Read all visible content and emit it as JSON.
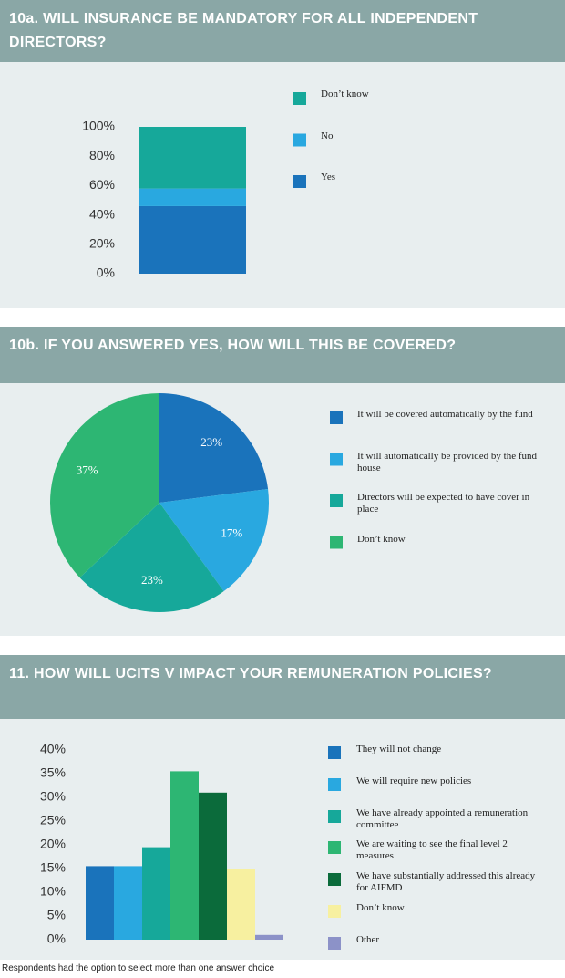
{
  "chart_data": [
    {
      "type": "stacked_bar",
      "title": "10a. WILL INSURANCE BE MANDATORY FOR ALL INDEPENDENT DIRECTORS?",
      "series": [
        {
          "name": "Yes",
          "color": "#1a73bb",
          "values": [
            46
          ]
        },
        {
          "name": "No",
          "color": "#29a8e0",
          "values": [
            12
          ]
        },
        {
          "name": "Don’t know",
          "color": "#16a89a",
          "values": [
            42
          ]
        }
      ],
      "ylim": [
        0,
        100
      ],
      "yticks": [
        {
          "value": 0,
          "label": "0%"
        },
        {
          "value": 20,
          "label": "20%"
        },
        {
          "value": 40,
          "label": "40%"
        },
        {
          "value": 60,
          "label": "60%"
        },
        {
          "value": 80,
          "label": "80%"
        },
        {
          "value": 100,
          "label": "100%"
        }
      ]
    },
    {
      "type": "pie",
      "title": "10b. IF YOU ANSWERED YES, HOW WILL THIS BE COVERED?",
      "categories": [
        "It will be covered automatically by the fund",
        "It will automatically be provided by the fund house",
        "Directors will be expected to have cover in place",
        "Don’t know"
      ],
      "values": [
        23,
        17,
        23,
        37
      ],
      "value_labels": [
        "23%",
        "17%",
        "23%",
        "37%"
      ],
      "colors": [
        "#1a73bb",
        "#29a8e0",
        "#16a89a",
        "#2db673"
      ]
    },
    {
      "type": "bar",
      "title": "11. HOW WILL UCITS V IMPACT YOUR REMUNERATION POLICIES?",
      "categories": [
        "They will not change",
        "We will require new policies",
        "We have already appointed a remuneration committee",
        "We are waiting to see the final level 2 measures",
        "We have substantially addressed this already for AIFMD",
        "Don’t know",
        "Other"
      ],
      "values": [
        15.5,
        15.5,
        19.5,
        35.5,
        31,
        15,
        1
      ],
      "colors": [
        "#1a73bb",
        "#29a8e0",
        "#16a89a",
        "#2db673",
        "#0b6b3b",
        "#f7f0a0",
        "#8c92c8"
      ],
      "ylim": [
        0,
        40
      ],
      "yticks": [
        {
          "value": 0,
          "label": "0%"
        },
        {
          "value": 5,
          "label": "5%"
        },
        {
          "value": 10,
          "label": "10%"
        },
        {
          "value": 15,
          "label": "15%"
        },
        {
          "value": 20,
          "label": "20%"
        },
        {
          "value": 25,
          "label": "25%"
        },
        {
          "value": 30,
          "label": "30%"
        },
        {
          "value": 35,
          "label": "35%"
        },
        {
          "value": 40,
          "label": "40%"
        }
      ],
      "note": "Respondents had the option to select more than one answer choice"
    }
  ]
}
